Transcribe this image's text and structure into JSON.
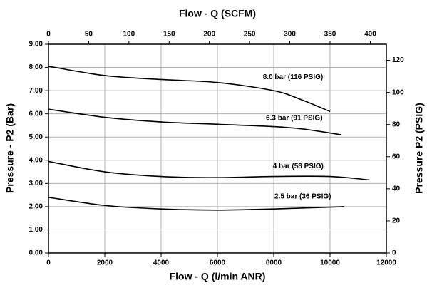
{
  "chart_data": {
    "type": "line",
    "x_label": "Flow - Q (l/min ANR)",
    "x2_label": "Flow - Q (SCFM)",
    "y_label": "Pressure - P2 (Bar)",
    "y2_label": "Pressure P2 (PSIG)",
    "xlim": [
      0,
      12000
    ],
    "xticks": [
      0,
      2000,
      4000,
      6000,
      8000,
      10000,
      12000
    ],
    "x2lim": [
      0,
      420
    ],
    "x2ticks": [
      0,
      50,
      100,
      150,
      200,
      250,
      300,
      350,
      400
    ],
    "ylim": [
      0,
      9
    ],
    "yticks": [
      {
        "value": 0,
        "label": "0,00"
      },
      {
        "value": 1,
        "label": "1,00"
      },
      {
        "value": 2,
        "label": "2,00"
      },
      {
        "value": 3,
        "label": "3,00"
      },
      {
        "value": 4,
        "label": "4,00"
      },
      {
        "value": 5,
        "label": "5,00"
      },
      {
        "value": 6,
        "label": "6,00"
      },
      {
        "value": 7,
        "label": "7,00"
      },
      {
        "value": 8,
        "label": "8,00"
      },
      {
        "value": 9,
        "label": "9,00"
      }
    ],
    "y2lim": [
      0,
      130
    ],
    "y2ticks": [
      0,
      20,
      40,
      60,
      80,
      100,
      120
    ],
    "grid": true,
    "series": [
      {
        "name": "8.0 bar (116 PSIG)",
        "color": "#000000",
        "x": [
          0,
          2000,
          4000,
          6000,
          8000,
          9000,
          10000
        ],
        "values": [
          8.05,
          7.65,
          7.48,
          7.35,
          7.0,
          6.6,
          6.1
        ]
      },
      {
        "name": "6.3 bar (91 PSIG)",
        "color": "#000000",
        "x": [
          0,
          2000,
          4000,
          6000,
          8000,
          9000,
          10400
        ],
        "values": [
          6.2,
          5.85,
          5.65,
          5.55,
          5.45,
          5.35,
          5.1
        ]
      },
      {
        "name": "4 bar (58 PSIG)",
        "color": "#000000",
        "x": [
          0,
          2000,
          4000,
          6000,
          8000,
          10000,
          11400
        ],
        "values": [
          3.95,
          3.5,
          3.3,
          3.25,
          3.3,
          3.3,
          3.15
        ]
      },
      {
        "name": "2.5 bar (36 PSIG)",
        "color": "#000000",
        "x": [
          0,
          2000,
          4000,
          6000,
          8000,
          10500
        ],
        "values": [
          2.4,
          2.05,
          1.9,
          1.85,
          1.9,
          2.0
        ]
      }
    ]
  }
}
